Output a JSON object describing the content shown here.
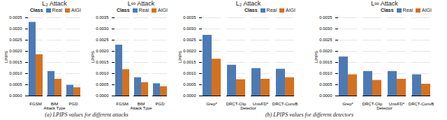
{
  "chart_data": [
    {
      "type": "bar",
      "title": "L₂ Attack",
      "xlabel": "Attack Type",
      "ylabel": "LPIPS",
      "categories": [
        "FGSM",
        "BIM",
        "PGD"
      ],
      "series": [
        {
          "name": "Real",
          "color": "#4c7ab5",
          "values": [
            0.0033,
            0.0011,
            0.00048
          ]
        },
        {
          "name": "AIGI",
          "color": "#d4711e",
          "values": [
            0.00185,
            0.00075,
            0.00037
          ]
        }
      ],
      "ylim": [
        0,
        0.0035
      ],
      "yticks": [
        {
          "value": 0,
          "label": "0.0000"
        },
        0.0005,
        {
          "value": 0.001,
          "label": "0.0010"
        },
        0.0015,
        {
          "value": 0.002,
          "label": "0.0020"
        },
        0.0025,
        {
          "value": 0.003,
          "label": "0.0030"
        },
        0.0035
      ],
      "grid": true,
      "legend": "upper right",
      "legend_title": "Class",
      "caption": "(a) LPIPS values for different attacks"
    },
    {
      "type": "bar",
      "title": "L∞ Attack",
      "xlabel": "Attack Type",
      "ylabel": "LPIPS",
      "categories": [
        "FGSM",
        "BIM",
        "PGD"
      ],
      "series": [
        {
          "name": "Real",
          "color": "#4c7ab5",
          "values": [
            0.00228,
            0.00082,
            0.00055
          ]
        },
        {
          "name": "AIGI",
          "color": "#d4711e",
          "values": [
            0.00118,
            0.0006,
            0.00042
          ]
        }
      ],
      "ylim": [
        0,
        0.0035
      ],
      "yticks": [
        {
          "value": 0,
          "label": "0.0000"
        },
        0.0005,
        {
          "value": 0.001,
          "label": "0.0010"
        },
        0.0015,
        {
          "value": 0.002,
          "label": "0.0020"
        },
        0.0025,
        {
          "value": 0.003,
          "label": "0.0030"
        },
        0.0035
      ],
      "grid": true,
      "legend": "upper right",
      "legend_title": "Class"
    },
    {
      "type": "bar",
      "title": "L₂ Attack",
      "xlabel": "Detector",
      "ylabel": "LPIPS",
      "categories": [
        "Grep*",
        "DRCT-Clip",
        "UnivFD*",
        "DRCT-ConvB"
      ],
      "series": [
        {
          "name": "Real",
          "color": "#4c7ab5",
          "values": [
            0.00272,
            0.00138,
            0.00123,
            0.0012
          ]
        },
        {
          "name": "AIGI",
          "color": "#d4711e",
          "values": [
            0.00165,
            0.00073,
            0.00075,
            0.00082
          ]
        }
      ],
      "ylim": [
        0,
        0.0035
      ],
      "yticks": [
        {
          "value": 0,
          "label": "0.0000"
        },
        0.0005,
        {
          "value": 0.001,
          "label": "0.0010"
        },
        0.0015,
        {
          "value": 0.002,
          "label": "0.0020"
        },
        0.0025,
        {
          "value": 0.003,
          "label": "0.0030"
        },
        0.0035
      ],
      "grid": true,
      "legend": "upper right",
      "legend_title": "Class",
      "caption": "(b) LPIPS values for different detectors"
    },
    {
      "type": "bar",
      "title": "L∞ Attack",
      "xlabel": "Detector",
      "ylabel": "LPIPS",
      "categories": [
        "Grep*",
        "DRCT-Clip",
        "UnivFD*",
        "DRCT-ConvB"
      ],
      "series": [
        {
          "name": "Real",
          "color": "#4c7ab5",
          "values": [
            0.00175,
            0.0011,
            0.0011,
            0.00095
          ]
        },
        {
          "name": "AIGI",
          "color": "#d4711e",
          "values": [
            0.00095,
            0.0007,
            0.00075,
            0.00053
          ]
        }
      ],
      "ylim": [
        0,
        0.0035
      ],
      "yticks": [
        {
          "value": 0,
          "label": "0.0000"
        },
        0.0005,
        {
          "value": 0.001,
          "label": "0.0010"
        },
        0.0015,
        {
          "value": 0.002,
          "label": "0.0020"
        },
        0.0025,
        {
          "value": 0.003,
          "label": "0.0030"
        },
        0.0035
      ],
      "grid": true,
      "legend": "upper right",
      "legend_title": "Class"
    }
  ]
}
